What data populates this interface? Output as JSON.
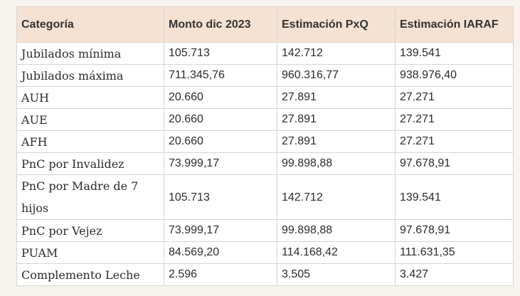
{
  "table": {
    "headers": [
      "Categoría",
      "Monto dic 2023",
      "Estimación PxQ",
      "Estimación IARAF"
    ],
    "rows": [
      [
        "Jubilados mínima",
        "105.713",
        "142.712",
        "139.541"
      ],
      [
        "Jubilados máxima",
        "711.345,76",
        "960.316,77",
        "938.976,40"
      ],
      [
        "AUH",
        "20.660",
        "27.891",
        "27.271"
      ],
      [
        "AUE",
        "20.660",
        "27.891",
        "27.271"
      ],
      [
        "AFH",
        "20.660",
        "27.891",
        "27.271"
      ],
      [
        "PnC por Invalidez",
        "73.999,17",
        "99.898,88",
        "97.678,91"
      ],
      [
        "PnC por Madre de 7 hijos",
        "105.713",
        "142.712",
        "139.541"
      ],
      [
        "PnC por Vejez",
        "73.999,17",
        "99.898,88",
        "97.678,91"
      ],
      [
        "PUAM",
        "84.569,20",
        "114.168,42",
        "111.631,35"
      ],
      [
        "Complemento Leche",
        "2.596",
        "3.505",
        "3.427"
      ]
    ]
  }
}
